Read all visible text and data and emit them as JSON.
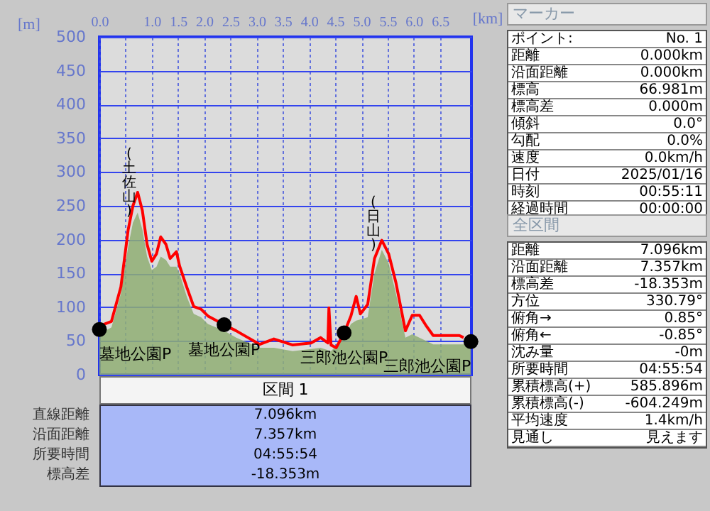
{
  "chart_data": [
    {
      "type": "line",
      "xlabel": "[km]",
      "ylabel": "[m]",
      "xlim": [
        0,
        7.1
      ],
      "ylim": [
        0,
        500
      ],
      "xticks": [
        {
          "value": 0,
          "label": "0.0"
        },
        {
          "value": 0.5,
          "label": null
        },
        {
          "value": 1,
          "label": "1.0"
        },
        1.5,
        {
          "value": 2,
          "label": "2.0"
        },
        2.5,
        {
          "value": 3,
          "label": "3.0"
        },
        3.5,
        {
          "value": 4,
          "label": "4.0"
        },
        4.5,
        {
          "value": 5,
          "label": "5.0"
        },
        5.5,
        {
          "value": 6,
          "label": "6.0"
        },
        6.5
      ],
      "yticks": [
        0,
        50,
        100,
        150,
        200,
        250,
        300,
        350,
        400,
        450,
        500
      ],
      "grid": true,
      "line_style": "solid",
      "series": [
        {
          "type": "area",
          "color": "#8fae73",
          "x": [
            0,
            0.23,
            0.41,
            0.55,
            0.64,
            0.73,
            0.82,
            0.91,
            1.0,
            1.09,
            1.17,
            1.27,
            1.35,
            1.47,
            1.53,
            1.67,
            1.8,
            1.94,
            2.07,
            2.38,
            2.61,
            3.06,
            3.33,
            3.69,
            4.04,
            4.22,
            4.42,
            4.67,
            4.8,
            4.9,
            5.12,
            5.25,
            5.39,
            5.52,
            5.66,
            5.84,
            5.97,
            6.24,
            6.37,
            6.87,
            7.09
          ],
          "values": [
            60,
            70,
            120,
            190,
            225,
            240,
            215,
            175,
            155,
            160,
            175,
            170,
            160,
            160,
            150,
            115,
            90,
            85,
            75,
            65,
            55,
            40,
            40,
            35,
            38,
            40,
            35,
            55,
            75,
            80,
            85,
            150,
            185,
            165,
            120,
            55,
            60,
            50,
            45,
            45,
            45
          ]
        },
        {
          "type": "line",
          "color": "#ff0000",
          "x": [
            0,
            0.23,
            0.41,
            0.55,
            0.64,
            0.73,
            0.82,
            0.91,
            1.0,
            1.09,
            1.17,
            1.27,
            1.35,
            1.47,
            1.53,
            1.67,
            1.8,
            1.94,
            2.07,
            2.38,
            2.61,
            3.06,
            3.33,
            3.69,
            4.04,
            4.22,
            4.36,
            4.38,
            4.42,
            4.52,
            4.67,
            4.8,
            4.9,
            4.98,
            5.12,
            5.25,
            5.39,
            5.52,
            5.66,
            5.84,
            5.97,
            6.11,
            6.24,
            6.37,
            6.87,
            6.95
          ],
          "values": [
            72,
            79,
            130,
            215,
            250,
            270,
            243,
            193,
            168,
            179,
            204,
            193,
            172,
            182,
            161,
            129,
            101,
            97,
            87,
            74,
            65,
            45,
            53,
            44,
            47,
            55,
            47,
            99,
            44,
            40,
            62,
            87,
            116,
            90,
            104,
            172,
            199,
            179,
            136,
            65,
            88,
            88,
            72,
            58,
            58,
            55
          ]
        },
        {
          "type": "scatter",
          "color": "#000000",
          "x": [
            0,
            2.38,
            4.67,
            7.09
          ],
          "values": [
            67,
            74,
            62,
            49
          ]
        }
      ],
      "annotations": [
        {
          "text": "(土佐山)",
          "x": 0.73,
          "y": 270
        },
        {
          "text": "(日山)",
          "x": 5.39,
          "y": 199
        },
        {
          "text": "墓地公園P",
          "x": 0,
          "y": 67
        },
        {
          "text": "墓地公園P",
          "x": 2.38,
          "y": 74
        },
        {
          "text": "三郎池公園P",
          "x": 4.67,
          "y": 62
        },
        {
          "text": "三郎池公園P",
          "x": 7.09,
          "y": 49
        }
      ]
    },
    {
      "type": "other",
      "title": "区間 1",
      "annotations": [
        "直線距離",
        "7.096km",
        "沿面距離",
        "7.357km",
        "所要時間",
        "04:55:54",
        "標高差",
        "-18.353m"
      ]
    },
    {
      "type": "other",
      "title": "マーカー",
      "annotations": [
        "ポイント:",
        "No. 1",
        "距離",
        "0.000km",
        "沿面距離",
        "0.000km",
        "標高",
        "66.981m",
        "標高差",
        "0.000m",
        "傾斜",
        "0.0°",
        "勾配",
        "0.0%",
        "速度",
        "0.0km/h",
        "日付",
        "2025/01/16",
        "時刻",
        "00:55:11",
        "経過時間",
        "00:00:00"
      ]
    },
    {
      "type": "other",
      "title": "全区間",
      "annotations": [
        "距離",
        "7.096km",
        "沿面距離",
        "7.357km",
        "標高差",
        "-18.353m",
        "方位",
        "330.79°",
        "俯角→",
        "0.85°",
        "俯角←",
        "-0.85°",
        "沈み量",
        "-0m",
        "所要時間",
        "04:55:54",
        "累積標高(+)",
        "585.896m",
        "累積標高(-)",
        "-604.249m",
        "平均速度",
        "1.4km/h",
        "見通し",
        "見えます"
      ]
    }
  ]
}
